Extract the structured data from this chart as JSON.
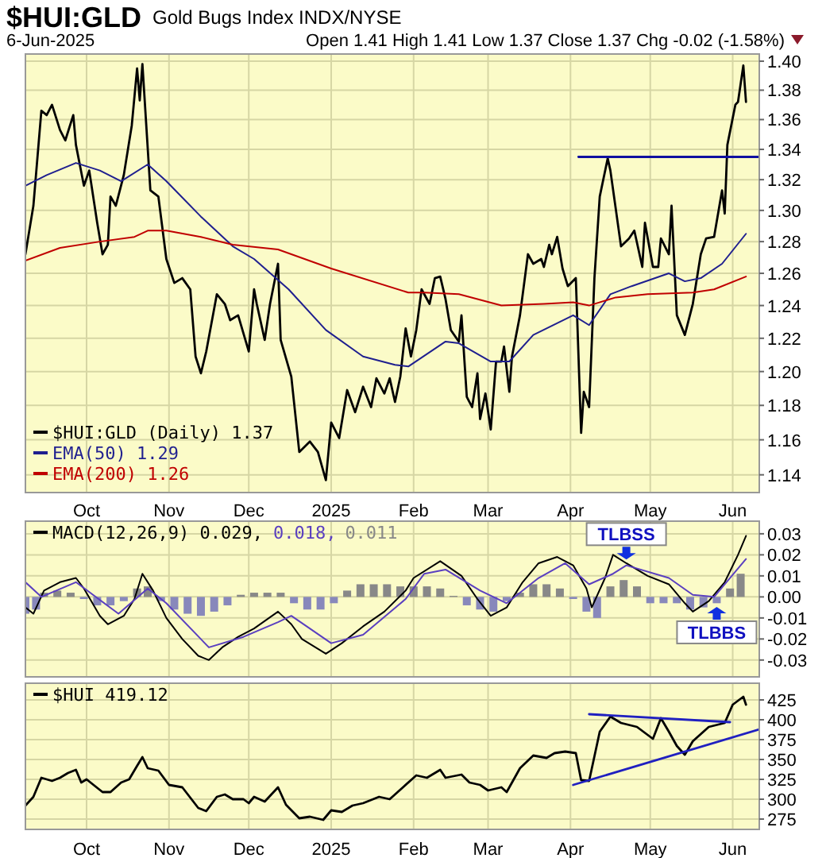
{
  "chart_data": [
    {
      "type": "line",
      "title": "$HUI:GLD",
      "subtitle": "Gold Bugs Index INDX/NYSE",
      "annotations": [
        "6-Jun-2025",
        "Open 1.41  High 1.41  Low 1.37  Close 1.37  Chg -0.02 (-1.58%)"
      ],
      "xlim": [
        "2024-09-08",
        "2025-06-11"
      ],
      "xticks": [
        {
          "value": "2024-10-01",
          "label": "Oct"
        },
        {
          "value": "2024-11-01",
          "label": "Nov"
        },
        {
          "value": "2024-12-01",
          "label": "Dec"
        },
        {
          "value": "2025-01-01",
          "label": "2025"
        },
        {
          "value": "2025-02-01",
          "label": "Feb"
        },
        {
          "value": "2025-03-01",
          "label": "Mar"
        },
        {
          "value": "2025-04-01",
          "label": "Apr"
        },
        {
          "value": "2025-05-01",
          "label": "May"
        },
        {
          "value": "2025-06-01",
          "label": "Jun"
        }
      ],
      "ylim": [
        1.13,
        1.405
      ],
      "log": true,
      "yticks": [
        {
          "value": 1.14,
          "label": "1.14"
        },
        {
          "value": 1.16,
          "label": "1.16"
        },
        {
          "value": 1.18,
          "label": "1.18"
        },
        {
          "value": 1.2,
          "label": "1.20"
        },
        {
          "value": 1.22,
          "label": "1.22"
        },
        {
          "value": 1.24,
          "label": "1.24"
        },
        {
          "value": 1.26,
          "label": "1.26"
        },
        {
          "value": 1.28,
          "label": "1.28"
        },
        {
          "value": 1.3,
          "label": "1.30"
        },
        {
          "value": 1.32,
          "label": "1.32"
        },
        {
          "value": 1.34,
          "label": "1.34"
        },
        {
          "value": 1.36,
          "label": "1.36"
        },
        {
          "value": 1.38,
          "label": "1.38"
        },
        {
          "value": 1.4,
          "label": "1.40"
        }
      ],
      "grid": true,
      "legend": "bottom left",
      "series": [
        {
          "name": "$HUI:GLD (Daily) 1.37",
          "color": "#000000",
          "x": [
            "2024-09-08",
            "2024-09-11",
            "2024-09-14",
            "2024-09-16",
            "2024-09-18",
            "2024-09-21",
            "2024-09-23",
            "2024-09-26",
            "2024-09-27",
            "2024-09-30",
            "2024-10-02",
            "2024-10-05",
            "2024-10-07",
            "2024-10-09",
            "2024-10-10",
            "2024-10-12",
            "2024-10-15",
            "2024-10-18",
            "2024-10-20",
            "2024-10-21",
            "2024-10-22",
            "2024-10-25",
            "2024-10-28",
            "2024-10-31",
            "2024-11-03",
            "2024-11-06",
            "2024-11-09",
            "2024-11-11",
            "2024-11-13",
            "2024-11-15",
            "2024-11-19",
            "2024-11-22",
            "2024-11-24",
            "2024-11-27",
            "2024-12-01",
            "2024-12-03",
            "2024-12-04",
            "2024-12-07",
            "2024-12-09",
            "2024-12-12",
            "2024-12-13",
            "2024-12-17",
            "2024-12-20",
            "2024-12-24",
            "2024-12-27",
            "2024-12-30",
            "2025-01-01",
            "2025-01-04",
            "2025-01-07",
            "2025-01-10",
            "2025-01-13",
            "2025-01-16",
            "2025-01-18",
            "2025-01-21",
            "2025-01-23",
            "2025-01-25",
            "2025-01-27",
            "2025-01-29",
            "2025-01-31",
            "2025-02-02",
            "2025-02-04",
            "2025-02-07",
            "2025-02-09",
            "2025-02-11",
            "2025-02-13",
            "2025-02-15",
            "2025-02-18",
            "2025-02-19",
            "2025-02-21",
            "2025-02-23",
            "2025-02-25",
            "2025-02-26",
            "2025-02-28",
            "2025-03-02",
            "2025-03-04",
            "2025-03-06",
            "2025-03-07",
            "2025-03-09",
            "2025-03-10",
            "2025-03-13",
            "2025-03-16",
            "2025-03-18",
            "2025-03-21",
            "2025-03-22",
            "2025-03-24",
            "2025-03-25",
            "2025-03-27",
            "2025-03-29",
            "2025-03-31",
            "2025-04-03",
            "2025-04-05",
            "2025-04-06",
            "2025-04-08",
            "2025-04-10",
            "2025-04-12",
            "2025-04-15",
            "2025-04-16",
            "2025-04-20",
            "2025-04-23",
            "2025-04-25",
            "2025-04-28",
            "2025-04-29",
            "2025-05-02",
            "2025-05-04",
            "2025-05-05",
            "2025-05-08",
            "2025-05-09",
            "2025-05-11",
            "2025-05-14",
            "2025-05-17",
            "2025-05-20",
            "2025-05-22",
            "2025-05-25",
            "2025-05-28",
            "2025-05-29",
            "2025-05-30",
            "2025-06-02",
            "2025-06-03",
            "2025-06-05",
            "2025-06-06"
          ],
          "values": [
            1.272,
            1.303,
            1.366,
            1.363,
            1.37,
            1.353,
            1.346,
            1.363,
            1.343,
            1.316,
            1.326,
            1.292,
            1.272,
            1.278,
            1.309,
            1.303,
            1.323,
            1.356,
            1.395,
            1.373,
            1.398,
            1.313,
            1.309,
            1.269,
            1.254,
            1.257,
            1.25,
            1.209,
            1.199,
            1.212,
            1.247,
            1.241,
            1.231,
            1.234,
            1.212,
            1.25,
            1.241,
            1.219,
            1.241,
            1.266,
            1.219,
            1.197,
            1.153,
            1.159,
            1.153,
            1.137,
            1.17,
            1.161,
            1.189,
            1.176,
            1.191,
            1.179,
            1.196,
            1.187,
            1.196,
            1.182,
            1.197,
            1.226,
            1.209,
            1.225,
            1.25,
            1.241,
            1.257,
            1.258,
            1.244,
            1.225,
            1.218,
            1.234,
            1.185,
            1.179,
            1.199,
            1.172,
            1.187,
            1.166,
            1.206,
            1.206,
            1.215,
            1.188,
            1.209,
            1.234,
            1.272,
            1.266,
            1.269,
            1.264,
            1.278,
            1.272,
            1.283,
            1.263,
            1.252,
            1.257,
            1.164,
            1.188,
            1.179,
            1.257,
            1.309,
            1.334,
            1.326,
            1.277,
            1.282,
            1.287,
            1.264,
            1.292,
            1.264,
            1.264,
            1.282,
            1.272,
            1.303,
            1.234,
            1.222,
            1.241,
            1.272,
            1.282,
            1.283,
            1.313,
            1.298,
            1.343,
            1.37,
            1.372,
            1.397,
            1.372
          ]
        },
        {
          "name": "EMA(50) 1.29",
          "color": "#1f1f8f",
          "x": [
            "2024-09-08",
            "2024-09-16",
            "2024-09-27",
            "2024-10-06",
            "2024-10-14",
            "2024-10-24",
            "2024-10-31",
            "2024-11-13",
            "2024-11-25",
            "2024-12-03",
            "2024-12-16",
            "2024-12-30",
            "2025-01-13",
            "2025-01-25",
            "2025-01-30",
            "2025-02-13",
            "2025-02-18",
            "2025-03-02",
            "2025-03-09",
            "2025-03-18",
            "2025-04-02",
            "2025-04-08",
            "2025-04-16",
            "2025-04-24",
            "2025-05-08",
            "2025-05-14",
            "2025-05-20",
            "2025-05-28",
            "2025-06-06"
          ],
          "values": [
            1.316,
            1.323,
            1.331,
            1.326,
            1.319,
            1.33,
            1.319,
            1.296,
            1.277,
            1.269,
            1.25,
            1.225,
            1.209,
            1.204,
            1.203,
            1.218,
            1.217,
            1.206,
            1.206,
            1.222,
            1.234,
            1.228,
            1.247,
            1.252,
            1.26,
            1.255,
            1.257,
            1.266,
            1.285
          ]
        },
        {
          "name": "EMA(200) 1.26",
          "color": "#c00000",
          "x": [
            "2024-09-08",
            "2024-09-21",
            "2024-10-06",
            "2024-10-19",
            "2024-10-24",
            "2024-10-31",
            "2024-11-13",
            "2024-11-25",
            "2024-12-12",
            "2025-01-01",
            "2025-01-30",
            "2025-02-05",
            "2025-02-18",
            "2025-03-06",
            "2025-03-22",
            "2025-04-02",
            "2025-04-08",
            "2025-04-18",
            "2025-04-30",
            "2025-05-17",
            "2025-05-25",
            "2025-06-06"
          ],
          "values": [
            1.268,
            1.276,
            1.28,
            1.283,
            1.287,
            1.287,
            1.283,
            1.278,
            1.275,
            1.263,
            1.248,
            1.248,
            1.247,
            1.24,
            1.241,
            1.242,
            1.24,
            1.245,
            1.247,
            1.248,
            1.25,
            1.258
          ]
        },
        {
          "color": "#1010a0",
          "x": [
            "2025-04-04",
            "2025-06-11"
          ],
          "values": [
            1.335,
            1.335
          ]
        }
      ]
    },
    {
      "type": "line",
      "tick_labels": "y",
      "xlim": [
        "2024-09-08",
        "2025-06-11"
      ],
      "xticks": [
        {
          "value": "2024-10-01",
          "label": null
        },
        {
          "value": "2024-11-01",
          "label": null
        },
        {
          "value": "2024-12-01",
          "label": null
        },
        {
          "value": "2025-01-01",
          "label": null
        },
        {
          "value": "2025-02-01",
          "label": null
        },
        {
          "value": "2025-03-01",
          "label": null
        },
        {
          "value": "2025-04-01",
          "label": null
        },
        {
          "value": "2025-05-01",
          "label": null
        },
        {
          "value": "2025-06-01",
          "label": null
        }
      ],
      "ylim": [
        -0.038,
        0.036
      ],
      "yticks": [
        {
          "value": -0.03,
          "label": "-0.03"
        },
        {
          "value": -0.02,
          "label": "-0.02"
        },
        {
          "value": -0.01,
          "label": "-0.01"
        },
        {
          "value": 0,
          "label": "0.00"
        },
        {
          "value": 0.01,
          "label": "0.01"
        },
        {
          "value": 0.02,
          "label": "0.02"
        },
        {
          "value": 0.03,
          "label": "0.03"
        }
      ],
      "grid": true,
      "legend": "top left",
      "annotations": [
        {
          "text": "TLBSS",
          "x": "2025-04-22",
          "y": 0.017
        },
        {
          "text": "TLBBS",
          "x": "2025-05-26",
          "y": -0.004
        }
      ],
      "series": [
        {
          "type": "bar",
          "name": "0.011",
          "colors": [
            "#8888bb",
            "#8888bb",
            "#888888",
            "#888888",
            "#888888",
            "#8888bb",
            "#8888bb",
            "#8888bb",
            "#8888bb",
            "#888888",
            "#888888",
            "#8888bb",
            "#8888bb",
            "#8888bb",
            "#8888bb",
            "#8888bb",
            "#8888bb",
            "#888888",
            "#888888",
            "#888888",
            "#888888",
            "#8888bb",
            "#8888bb",
            "#8888bb",
            "#8888bb",
            "#888888",
            "#888888",
            "#888888",
            "#888888",
            "#888888",
            "#888888",
            "#888888",
            "#888888",
            "#888888",
            "#8888bb",
            "#8888bb",
            "#8888bb",
            "#8888bb",
            "#888888",
            "#888888",
            "#888888",
            "#888888",
            "#8888bb",
            "#8888bb",
            "#8888bb",
            "#888888",
            "#888888",
            "#888888",
            "#8888bb",
            "#8888bb",
            "#8888bb",
            "#8888bb",
            "#8888bb",
            "#8888bb",
            "#888888",
            "#888888"
          ],
          "x": [
            "2024-09-08",
            "2024-09-12",
            "2024-09-15",
            "2024-09-20",
            "2024-09-25",
            "2024-09-30",
            "2024-10-05",
            "2024-10-10",
            "2024-10-15",
            "2024-10-20",
            "2024-10-24",
            "2024-10-29",
            "2024-11-03",
            "2024-11-08",
            "2024-11-13",
            "2024-11-18",
            "2024-11-23",
            "2024-11-28",
            "2024-12-03",
            "2024-12-08",
            "2024-12-13",
            "2024-12-18",
            "2024-12-23",
            "2024-12-28",
            "2025-01-02",
            "2025-01-07",
            "2025-01-12",
            "2025-01-17",
            "2025-01-22",
            "2025-01-27",
            "2025-02-01",
            "2025-02-06",
            "2025-02-11",
            "2025-02-16",
            "2025-02-21",
            "2025-02-26",
            "2025-03-03",
            "2025-03-08",
            "2025-03-13",
            "2025-03-18",
            "2025-03-23",
            "2025-03-28",
            "2025-04-02",
            "2025-04-07",
            "2025-04-11",
            "2025-04-16",
            "2025-04-21",
            "2025-04-26",
            "2025-05-01",
            "2025-05-06",
            "2025-05-11",
            "2025-05-16",
            "2025-05-21",
            "2025-05-26",
            "2025-05-31",
            "2025-06-04"
          ],
          "values": [
            -0.008,
            -0.006,
            0.002,
            0.003,
            0.002,
            -0.001,
            -0.004,
            -0.004,
            -0.002,
            0.004,
            0.005,
            -0.002,
            -0.006,
            -0.008,
            -0.009,
            -0.007,
            -0.004,
            0.001,
            0.002,
            0.002,
            0.002,
            -0.003,
            -0.006,
            -0.006,
            -0.003,
            0.003,
            0.006,
            0.006,
            0.006,
            0.005,
            0.005,
            0.005,
            0.004,
            0.0005,
            -0.004,
            -0.006,
            -0.007,
            -0.002,
            0.002,
            0.006,
            0.006,
            0.004,
            -0.001,
            -0.007,
            -0.01,
            0.005,
            0.008,
            0.005,
            -0.003,
            -0.003,
            -0.003,
            -0.006,
            -0.005,
            -0.003,
            0.004,
            0.011
          ]
        },
        {
          "name": "MACD(12,26,9) 0.029,",
          "color": "#000000",
          "x": [
            "2024-09-08",
            "2024-09-11",
            "2024-09-15",
            "2024-09-21",
            "2024-09-27",
            "2024-09-30",
            "2024-10-06",
            "2024-10-09",
            "2024-10-15",
            "2024-10-19",
            "2024-10-22",
            "2024-10-26",
            "2024-10-31",
            "2024-11-06",
            "2024-11-12",
            "2024-11-16",
            "2024-11-21",
            "2024-11-27",
            "2024-12-03",
            "2024-12-12",
            "2024-12-17",
            "2024-12-21",
            "2024-12-30",
            "2025-01-05",
            "2025-01-13",
            "2025-01-21",
            "2025-01-29",
            "2025-02-01",
            "2025-02-11",
            "2025-02-19",
            "2025-02-25",
            "2025-03-02",
            "2025-03-08",
            "2025-03-14",
            "2025-03-20",
            "2025-03-27",
            "2025-04-02",
            "2025-04-07",
            "2025-04-09",
            "2025-04-14",
            "2025-04-17",
            "2025-04-22",
            "2025-04-30",
            "2025-05-08",
            "2025-05-14",
            "2025-05-17",
            "2025-05-23",
            "2025-05-29",
            "2025-06-03",
            "2025-06-06"
          ],
          "values": [
            -0.005,
            -0.008,
            0.003,
            0.007,
            0.009,
            0.004,
            -0.009,
            -0.013,
            -0.009,
            -0.001,
            0.011,
            0.003,
            -0.01,
            -0.02,
            -0.028,
            -0.03,
            -0.024,
            -0.019,
            -0.015,
            -0.007,
            -0.013,
            -0.02,
            -0.027,
            -0.022,
            -0.014,
            -0.007,
            0.003,
            0.009,
            0.017,
            0.01,
            -0.001,
            -0.009,
            -0.005,
            0.007,
            0.016,
            0.019,
            0.015,
            0.004,
            -0.005,
            0.009,
            0.02,
            0.016,
            0.01,
            0.006,
            -0.003,
            -0.007,
            -0.002,
            0.007,
            0.02,
            0.029
          ]
        },
        {
          "name": "0.018,",
          "color": "#5a3fc0",
          "x": [
            "2024-09-08",
            "2024-09-14",
            "2024-09-27",
            "2024-10-13",
            "2024-10-24",
            "2024-10-31",
            "2024-11-16",
            "2024-11-29",
            "2024-12-12",
            "2024-12-17",
            "2025-01-01",
            "2025-01-13",
            "2025-01-29",
            "2025-02-05",
            "2025-02-13",
            "2025-02-26",
            "2025-03-08",
            "2025-03-20",
            "2025-03-30",
            "2025-04-08",
            "2025-04-17",
            "2025-04-22",
            "2025-05-08",
            "2025-05-17",
            "2025-05-25",
            "2025-06-06"
          ],
          "values": [
            0.007,
            0,
            0.007,
            -0.008,
            0.004,
            -0.003,
            -0.024,
            -0.019,
            -0.012,
            -0.009,
            -0.022,
            -0.018,
            -0.001,
            0.011,
            0.013,
            0.003,
            -0.003,
            0.009,
            0.016,
            0.006,
            0.011,
            0.015,
            0.009,
            0.001,
            0,
            0.018
          ]
        }
      ]
    },
    {
      "type": "line",
      "xlim": [
        "2024-09-08",
        "2025-06-11"
      ],
      "xticks": [
        {
          "value": "2024-10-01",
          "label": "Oct"
        },
        {
          "value": "2024-11-01",
          "label": "Nov"
        },
        {
          "value": "2024-12-01",
          "label": "Dec"
        },
        {
          "value": "2025-01-01",
          "label": "2025"
        },
        {
          "value": "2025-02-01",
          "label": "Feb"
        },
        {
          "value": "2025-03-01",
          "label": "Mar"
        },
        {
          "value": "2025-04-01",
          "label": "Apr"
        },
        {
          "value": "2025-05-01",
          "label": "May"
        },
        {
          "value": "2025-06-01",
          "label": "Jun"
        }
      ],
      "ylim": [
        262,
        446
      ],
      "yticks": [
        275,
        300,
        325,
        350,
        375,
        400,
        425
      ],
      "grid": true,
      "legend": "top left",
      "series": [
        {
          "name": "$HUI 419.12",
          "color": "#000000",
          "x": [
            "2024-09-08",
            "2024-09-11",
            "2024-09-14",
            "2024-09-18",
            "2024-09-21",
            "2024-09-24",
            "2024-09-27",
            "2024-09-29",
            "2024-10-01",
            "2024-10-07",
            "2024-10-10",
            "2024-10-14",
            "2024-10-17",
            "2024-10-20",
            "2024-10-22",
            "2024-10-24",
            "2024-10-28",
            "2024-11-01",
            "2024-11-06",
            "2024-11-12",
            "2024-11-15",
            "2024-11-19",
            "2024-11-22",
            "2024-11-25",
            "2024-11-29",
            "2024-12-01",
            "2024-12-03",
            "2024-12-07",
            "2024-12-12",
            "2024-12-15",
            "2024-12-20",
            "2024-12-24",
            "2024-12-29",
            "2025-01-01",
            "2025-01-05",
            "2025-01-09",
            "2025-01-13",
            "2025-01-19",
            "2025-01-23",
            "2025-01-28",
            "2025-02-02",
            "2025-02-06",
            "2025-02-11",
            "2025-02-13",
            "2025-02-19",
            "2025-02-22",
            "2025-02-26",
            "2025-03-01",
            "2025-03-06",
            "2025-03-08",
            "2025-03-13",
            "2025-03-18",
            "2025-03-23",
            "2025-03-26",
            "2025-03-30",
            "2025-04-03",
            "2025-04-05",
            "2025-04-08",
            "2025-04-12",
            "2025-04-16",
            "2025-04-20",
            "2025-04-26",
            "2025-05-02",
            "2025-05-05",
            "2025-05-08",
            "2025-05-11",
            "2025-05-14",
            "2025-05-17",
            "2025-05-23",
            "2025-05-29",
            "2025-06-01",
            "2025-06-05",
            "2025-06-06"
          ],
          "values": [
            292,
            303,
            327,
            323,
            327,
            333,
            337,
            321,
            325,
            309,
            309,
            321,
            325,
            342,
            353,
            339,
            336,
            318,
            315,
            289,
            285,
            303,
            306,
            300,
            300,
            295,
            303,
            297,
            315,
            293,
            276,
            278,
            274,
            286,
            284,
            292,
            295,
            303,
            300,
            315,
            330,
            327,
            337,
            327,
            331,
            321,
            318,
            311,
            315,
            309,
            339,
            355,
            352,
            358,
            360,
            358,
            324,
            323,
            385,
            404,
            396,
            391,
            376,
            402,
            385,
            367,
            356,
            373,
            391,
            396,
            419,
            429,
            419
          ]
        },
        {
          "color": "#2020c0",
          "x": [
            "2025-04-08",
            "2025-05-31"
          ],
          "values": [
            407,
            397
          ]
        },
        {
          "color": "#2020c0",
          "x": [
            "2025-04-02",
            "2025-06-11"
          ],
          "values": [
            318,
            388
          ]
        }
      ]
    }
  ]
}
